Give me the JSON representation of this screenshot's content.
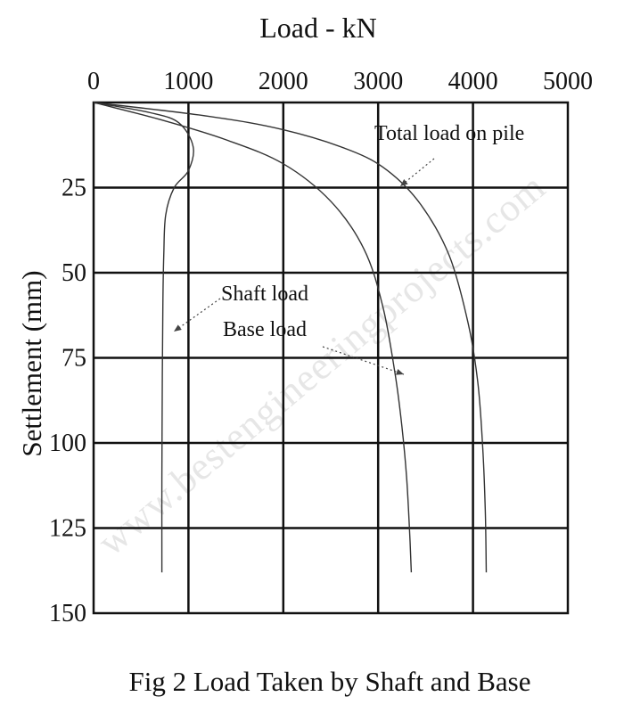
{
  "chart_data": {
    "type": "line",
    "title": "Load - kN",
    "xlabel": "Load - kN",
    "ylabel": "Settlement (mm)",
    "xlim": [
      0,
      5000
    ],
    "ylim": [
      0,
      150
    ],
    "y_inverted": true,
    "x_axis_position": "top",
    "grid": true,
    "x_ticks": [
      "0",
      "1000",
      "2000",
      "3000",
      "4000",
      "5000"
    ],
    "x_tick_values": [
      0,
      1000,
      2000,
      3000,
      4000,
      5000
    ],
    "y_ticks": [
      "25",
      "50",
      "75",
      "100",
      "125",
      "150"
    ],
    "y_tick_values": [
      25,
      50,
      75,
      100,
      125,
      150
    ],
    "series": [
      {
        "name": "Total load on pile",
        "x": [
          0,
          1200,
          2000,
          2700,
          3100,
          3450,
          3750,
          3950,
          4050,
          4100,
          4130,
          4140
        ],
        "y": [
          0,
          4,
          8,
          14,
          20,
          30,
          45,
          65,
          82,
          100,
          120,
          138
        ]
      },
      {
        "name": "Shaft load",
        "x": [
          0,
          600,
          900,
          1050,
          1000,
          850,
          760,
          740,
          730,
          725,
          720,
          720
        ],
        "y": [
          0,
          3,
          6,
          13,
          20,
          25,
          33,
          45,
          60,
          80,
          110,
          138
        ]
      },
      {
        "name": "Base load",
        "x": [
          0,
          700,
          1400,
          2000,
          2500,
          2850,
          3050,
          3180,
          3250,
          3300,
          3330,
          3350
        ],
        "y": [
          0,
          5,
          11,
          18,
          29,
          43,
          60,
          80,
          95,
          110,
          125,
          138
        ]
      }
    ],
    "annotations": [
      {
        "text": "Total load on pile"
      },
      {
        "text": "Shaft load"
      },
      {
        "text": "Base load"
      }
    ]
  },
  "caption": "Fig 2 Load Taken by Shaft and Base",
  "watermark": "www.bestengineeringprojects.com"
}
